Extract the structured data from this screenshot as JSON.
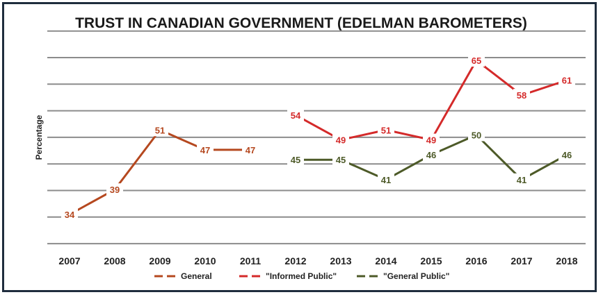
{
  "chart_data": {
    "type": "line",
    "title": "TRUST IN CANADIAN GOVERNMENT (EDELMAN BAROMETERS)",
    "ylabel": "Percentage",
    "xlabel": "",
    "categories": [
      "2007",
      "2008",
      "2009",
      "2010",
      "2011",
      "2012",
      "2013",
      "2014",
      "2015",
      "2016",
      "2017",
      "2018"
    ],
    "ylim": [
      28,
      71
    ],
    "grid": true,
    "legend_position": "bottom",
    "series": [
      {
        "name": "General",
        "color": "#b5481f",
        "values": [
          34,
          39,
          51,
          47,
          47,
          null,
          null,
          null,
          null,
          null,
          null,
          null
        ]
      },
      {
        "name": "\"Informed Public\"",
        "color": "#d42a2a",
        "values": [
          null,
          null,
          null,
          null,
          null,
          54,
          49,
          51,
          49,
          65,
          58,
          61
        ]
      },
      {
        "name": "\"General Public\"",
        "color": "#4d5a28",
        "values": [
          null,
          null,
          null,
          null,
          null,
          45,
          45,
          41,
          46,
          50,
          41,
          46
        ]
      }
    ]
  }
}
